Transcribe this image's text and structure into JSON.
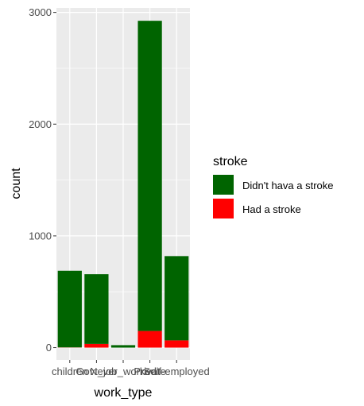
{
  "chart_data": {
    "type": "bar",
    "stacked": true,
    "categories": [
      "children",
      "Govt_job",
      "Never_worked",
      "Private",
      "Self-employed"
    ],
    "series": [
      {
        "name": "Didn't hava a stroke",
        "values": [
          686,
          624,
          22,
          2776,
          754
        ],
        "color": "#006400"
      },
      {
        "name": "Had a stroke",
        "values": [
          2,
          33,
          0,
          149,
          65
        ],
        "color": "#ff0000"
      }
    ],
    "xlabel": "work_type",
    "ylabel": "count",
    "ylim": [
      -110,
      3040
    ],
    "yticks": [
      0,
      1000,
      2000,
      3000
    ],
    "legend": {
      "title": "stroke",
      "placement": "right"
    },
    "panel_background": "#ebebeb",
    "gridline_color": "#ffffff",
    "grid": true
  }
}
